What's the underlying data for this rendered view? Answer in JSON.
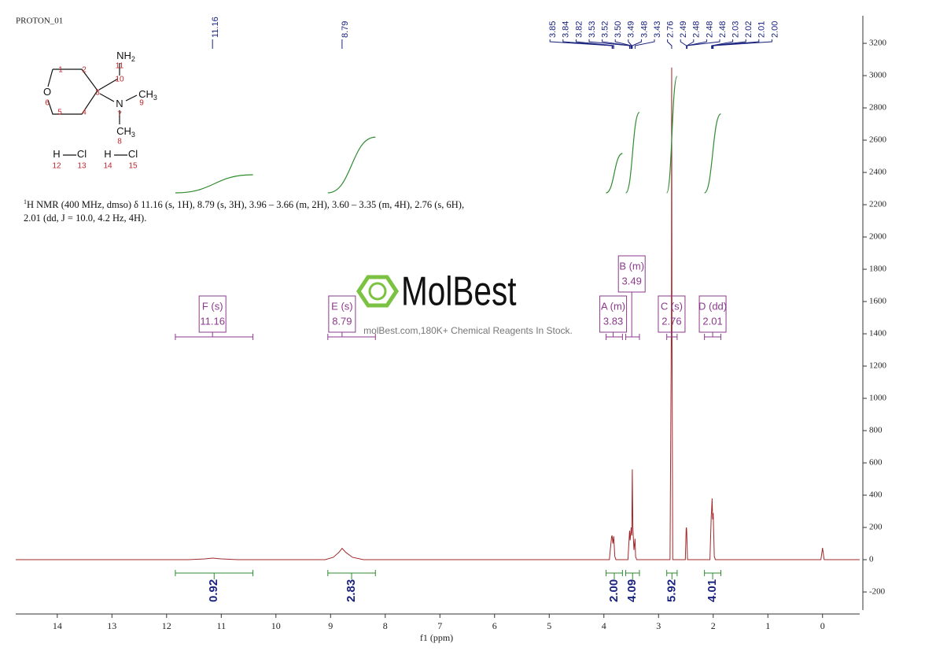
{
  "title": "PROTON_01",
  "molecule": {
    "atoms": [
      {
        "number": 1
      },
      {
        "number": 2
      },
      {
        "number": 3
      },
      {
        "number": 4
      },
      {
        "number": 5
      },
      {
        "symbol": "O",
        "number": 6
      },
      {
        "symbol": "N",
        "number": 7
      },
      {
        "symbol": "CH",
        "sub": "3",
        "number": 8
      },
      {
        "symbol": "CH",
        "sub": "3",
        "number": 9
      },
      {
        "number": 10
      },
      {
        "symbol": "NH",
        "sub": "2",
        "number": 11
      },
      {
        "symbol": "H",
        "number": 12
      },
      {
        "symbol": "Cl",
        "number": 13
      },
      {
        "symbol": "H",
        "number": 14
      },
      {
        "symbol": "Cl",
        "number": 15
      }
    ]
  },
  "description": {
    "sup": "1",
    "text": "H NMR (400 MHz, dmso) δ 11.16 (s, 1H), 8.79 (s, 3H), 3.96 – 3.66 (m, 2H), 3.60 – 3.35 (m, 4H), 2.76 (s, 6H), 2.01 (dd, J = 10.0, 4.2 Hz, 4H)."
  },
  "logo": "MolBest",
  "watermark": "molBest.com,180K+ Chemical Reagents In Stock.",
  "chart_data": {
    "type": "line",
    "x_label": "f1  (ppm)",
    "xlim": [
      14.76,
      -0.68
    ],
    "xticks": [
      14,
      13,
      12,
      11,
      10,
      9,
      8,
      7,
      6,
      5,
      4,
      3,
      2,
      1,
      0
    ],
    "ylim": [
      -312,
      3371
    ],
    "yticks": [
      -200,
      0,
      200,
      400,
      600,
      800,
      1000,
      1200,
      1400,
      1600,
      1800,
      2000,
      2200,
      2400,
      2600,
      2800,
      3000,
      3200
    ],
    "color": "#a0282a",
    "x": [
      14.76,
      11.6,
      11.3,
      11.16,
      11.0,
      10.7,
      9.1,
      8.95,
      8.85,
      8.79,
      8.72,
      8.6,
      8.4,
      3.9,
      3.86,
      3.85,
      3.835,
      3.82,
      3.8,
      3.78,
      3.56,
      3.53,
      3.52,
      3.5,
      3.49,
      3.48,
      3.47,
      3.45,
      3.43,
      3.42,
      3.4,
      2.79,
      2.765,
      2.76,
      2.755,
      2.74,
      2.51,
      2.495,
      2.49,
      2.485,
      2.47,
      2.06,
      2.035,
      2.03,
      2.02,
      2.01,
      2.0,
      1.98,
      1.96,
      0.03,
      0.0,
      -0.03,
      -0.68
    ],
    "values": [
      0,
      0,
      5,
      10,
      5,
      0,
      0,
      15,
      45,
      70,
      45,
      15,
      0,
      0,
      140,
      150,
      100,
      145,
      20,
      0,
      0,
      180,
      120,
      200,
      150,
      560,
      200,
      60,
      130,
      20,
      0,
      0,
      1500,
      3050,
      1500,
      0,
      0,
      190,
      200,
      180,
      0,
      0,
      280,
      300,
      380,
      250,
      290,
      20,
      0,
      0,
      73,
      0,
      0
    ],
    "peaks": [
      11.16,
      8.79,
      3.85,
      3.84,
      3.82,
      3.53,
      3.52,
      {
        "value": 3.5,
        "label": "3.50"
      },
      3.49,
      3.48,
      3.43,
      2.76,
      2.49,
      2.48,
      2.48,
      2.48,
      2.03,
      2.02,
      2.01,
      {
        "value": 2,
        "label": "2.00"
      }
    ],
    "integrals": [
      {
        "value": 0.92,
        "range": [
          11.84,
          10.42
        ]
      },
      {
        "value": 2.83,
        "range": [
          9.05,
          8.18
        ]
      },
      {
        "value": 2,
        "label": "2.00",
        "range": [
          3.96,
          3.66
        ]
      },
      {
        "value": 4.09,
        "range": [
          3.6,
          3.35
        ]
      },
      {
        "value": 5.92,
        "range": [
          2.85,
          2.66
        ]
      },
      {
        "value": 4.01,
        "range": [
          2.16,
          1.86
        ]
      }
    ],
    "multiplets": [
      {
        "label": "F (s)",
        "shift": 11.16,
        "range": [
          11.84,
          10.42
        ]
      },
      {
        "label": "E (s)",
        "shift": 8.79,
        "range": [
          9.05,
          8.18
        ]
      },
      {
        "label": "A (m)",
        "shift": 3.83,
        "range": [
          3.96,
          3.66
        ]
      },
      {
        "label": "B (m)",
        "shift": 3.49,
        "range": [
          3.6,
          3.35
        ]
      },
      {
        "label": "C (s)",
        "shift": 2.76,
        "range": [
          2.85,
          2.66
        ]
      },
      {
        "label": "D (dd)",
        "shift": 2.01,
        "range": [
          2.16,
          1.86
        ]
      }
    ]
  }
}
